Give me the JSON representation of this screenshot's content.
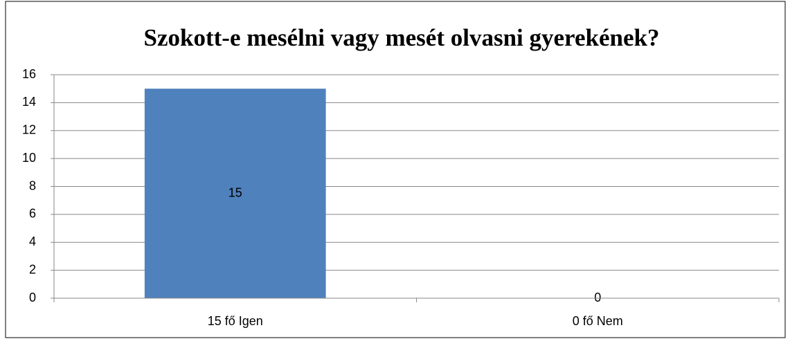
{
  "chart_data": {
    "type": "bar",
    "title": "Szokott-e mesélni vagy mesét olvasni gyerekének?",
    "categories": [
      "15 fő Igen",
      "0 fő Nem"
    ],
    "values": [
      15,
      0
    ],
    "color": "#4f81bd",
    "ylim": [
      0,
      16
    ],
    "yticks": [
      0,
      2,
      4,
      6,
      8,
      10,
      12,
      14,
      16
    ],
    "grid": true
  }
}
